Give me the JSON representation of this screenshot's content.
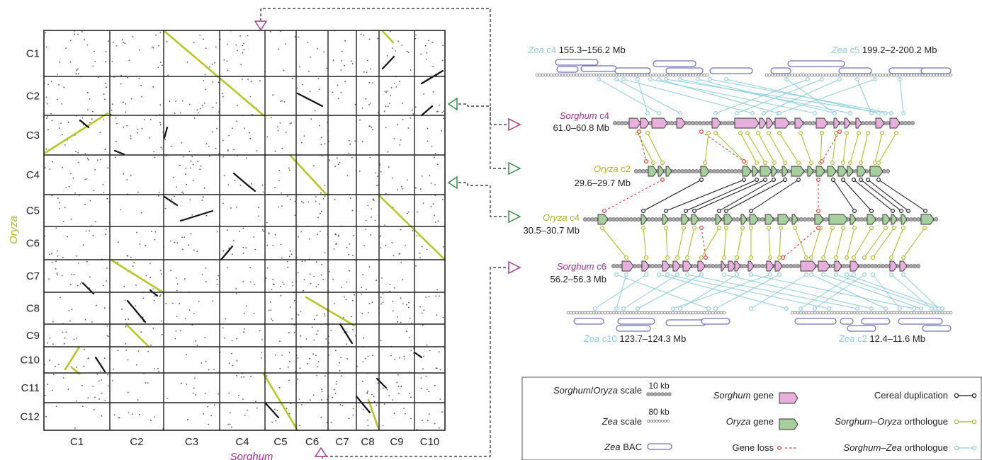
{
  "colors": {
    "sorghum": "#a0328c",
    "oryza": "#a8b820",
    "zea": "#8fcde0",
    "duplication": "#111111",
    "gene_loss": "#e0302c",
    "sorghum_gene_fill": "#e7b0dc",
    "oryza_gene_fill": "#a7cf9d",
    "bac": "#6d6fc0",
    "grid": "#222222",
    "scale_dot": "#9a9a9a"
  },
  "dotplot": {
    "x_axis_title": "Sorghum",
    "y_axis_title": "Oryza",
    "x_labels": [
      "C1",
      "C2",
      "C3",
      "C4",
      "C5",
      "C6",
      "C7",
      "C8",
      "C9",
      "C10"
    ],
    "y_labels": [
      "C1",
      "C2",
      "C3",
      "C4",
      "C5",
      "C6",
      "C7",
      "C8",
      "C9",
      "C10",
      "C11",
      "C12"
    ]
  },
  "tracks": {
    "zea_top_left": {
      "species": "Zea",
      "chrom": "c4",
      "range": "155.3–156.2 Mb"
    },
    "zea_top_right": {
      "species": "Zea",
      "chrom": "c5",
      "range": "199.2–2-200.2 Mb"
    },
    "sorghum_c4": {
      "species": "Sorghum",
      "chrom": "c4",
      "range": "61.0–60.8 Mb"
    },
    "oryza_c2": {
      "species": "Oryza",
      "chrom": "c2",
      "range": "29.6–29.7 Mb"
    },
    "oryza_c4": {
      "species": "Oryza",
      "chrom": "c4",
      "range": "30.5–30.7 Mb"
    },
    "sorghum_c6": {
      "species": "Sorghum",
      "chrom": "c6",
      "range": "56.2–56.3 Mb"
    },
    "zea_bottom_left": {
      "species": "Zea",
      "chrom": "c10",
      "range": "123.7–124.3 Mb"
    },
    "zea_bottom_right": {
      "species": "Zea",
      "chrom": "c2",
      "range": "12.4–11.6 Mb"
    }
  },
  "legend": {
    "sorghum_oryza_scale": {
      "species_a": "Sorghum",
      "sep": "/",
      "species_b": "Oryza",
      "suffix": "scale",
      "value": "10 kb"
    },
    "zea_scale": {
      "species": "Zea",
      "suffix": "scale",
      "value": "80 kb"
    },
    "zea_bac": {
      "species": "Zea",
      "suffix": "BAC"
    },
    "sorghum_gene": {
      "species": "Sorghum",
      "suffix": "gene"
    },
    "oryza_gene": {
      "species": "Oryza",
      "suffix": "gene"
    },
    "gene_loss": {
      "label": "Gene loss"
    },
    "cereal_duplication": {
      "label": "Cereal duplication"
    },
    "sorghum_oryza_orthologue": {
      "species_a": "Sorghum",
      "sep": "–",
      "species_b": "Oryza",
      "suffix": "orthologue"
    },
    "sorghum_zea_orthologue": {
      "species_a": "Sorghum",
      "sep": "–",
      "species_b": "Zea",
      "suffix": "orthologue"
    }
  }
}
